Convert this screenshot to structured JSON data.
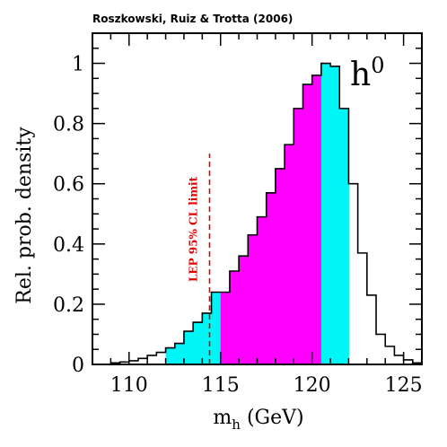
{
  "chart_data": {
    "type": "histogram",
    "credit": "Roszkowski, Ruiz & Trotta (2006)",
    "annotation": "h",
    "annotation_sup": "0",
    "xlabel": "m",
    "xlabel_sub": "h",
    "xlabel_unit": " (GeV)",
    "ylabel": "Rel. prob. density",
    "xlim": [
      108,
      126
    ],
    "ylim": [
      0,
      1.1
    ],
    "x_ticks": [
      110,
      115,
      120,
      125
    ],
    "y_ticks": [
      0,
      0.2,
      0.4,
      0.6,
      0.8,
      1
    ],
    "y_tick_labels": [
      "0",
      "0.2",
      "0.4",
      "0.6",
      "0.8",
      "1"
    ],
    "bin_width": 0.5,
    "bin_edges_start": 108.5,
    "values": [
      0.0,
      0.005,
      0.008,
      0.012,
      0.02,
      0.03,
      0.04,
      0.055,
      0.07,
      0.11,
      0.14,
      0.17,
      0.24,
      0.24,
      0.31,
      0.36,
      0.43,
      0.49,
      0.57,
      0.65,
      0.73,
      0.85,
      0.93,
      0.96,
      1.0,
      0.99,
      0.85,
      0.6,
      0.37,
      0.23,
      0.1,
      0.06,
      0.03,
      0.015,
      0.005
    ],
    "regions": [
      {
        "range": [
          112,
          115
        ],
        "color": "#00f6f6"
      },
      {
        "range": [
          115,
          120.5
        ],
        "color": "#ff00ff"
      },
      {
        "range": [
          120.5,
          122
        ],
        "color": "#00f6f6"
      }
    ],
    "reference_line": {
      "x": 114.4,
      "ymax": 0.7,
      "label": "LEP 95% CL limit",
      "color": "#e00000"
    }
  }
}
